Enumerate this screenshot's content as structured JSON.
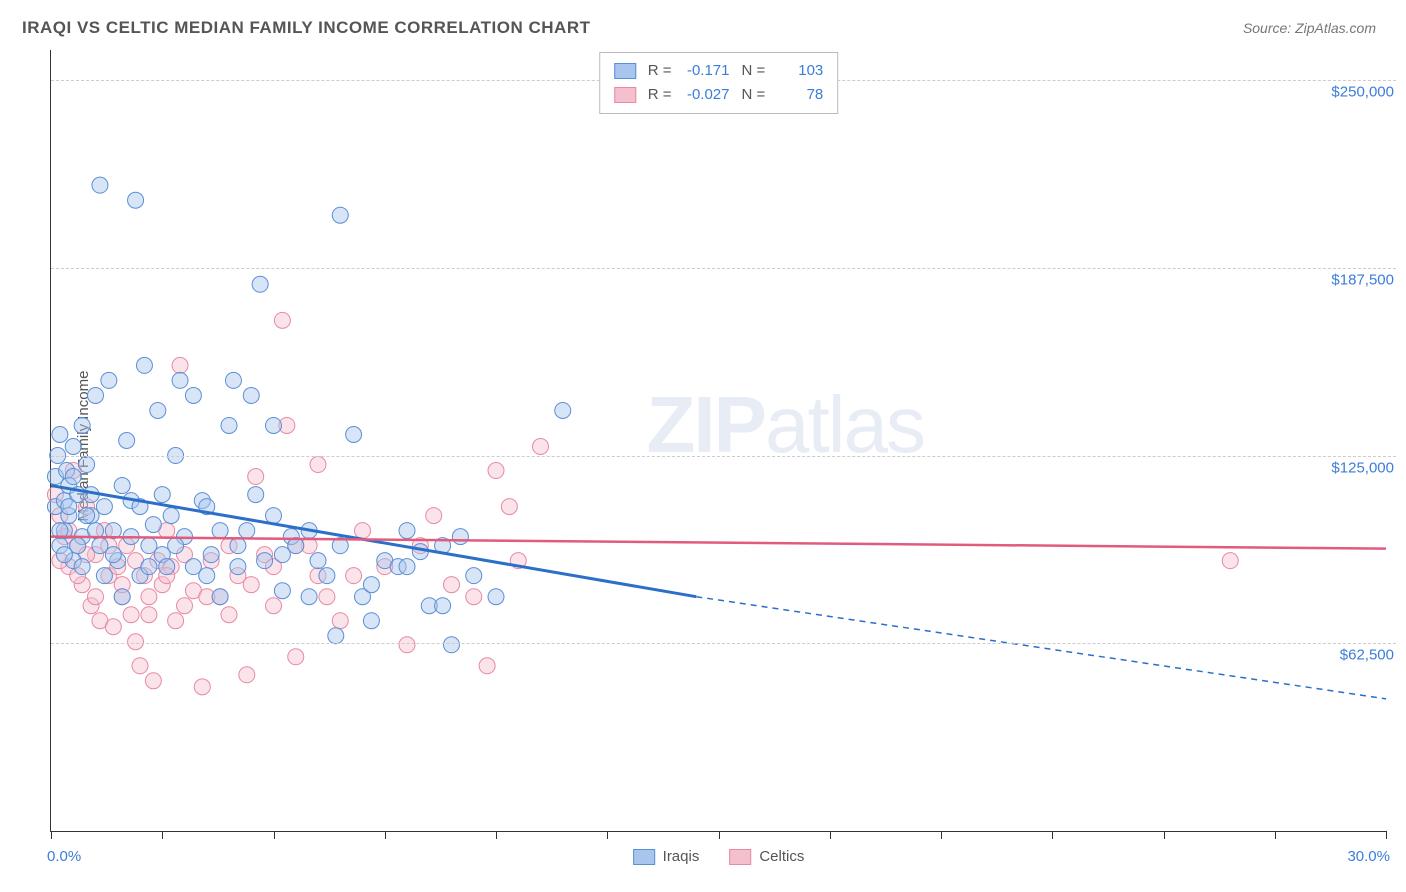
{
  "title": "IRAQI VS CELTIC MEDIAN FAMILY INCOME CORRELATION CHART",
  "source": "Source: ZipAtlas.com",
  "watermark": "ZIPatlas",
  "chart": {
    "type": "scatter",
    "y_label": "Median Family Income",
    "x_min": 0.0,
    "x_max": 30.0,
    "y_min": 0,
    "y_max": 260000,
    "y_ticks": [
      62500,
      125000,
      187500,
      250000
    ],
    "y_tick_labels": [
      "$62,500",
      "$125,000",
      "$187,500",
      "$250,000"
    ],
    "x_axis_start_label": "0.0%",
    "x_axis_end_label": "30.0%",
    "x_tick_positions": [
      0,
      2.5,
      5,
      7.5,
      10,
      12.5,
      15,
      17.5,
      20,
      22.5,
      25,
      27.5,
      30
    ],
    "background_color": "#ffffff",
    "grid_color": "#cccccc",
    "marker_radius": 8,
    "marker_opacity": 0.45,
    "series": [
      {
        "name": "Iraqis",
        "color_fill": "#a8c5ed",
        "color_stroke": "#5b8fd6",
        "line_color": "#2c6fc9",
        "R": "-0.171",
        "N": "103",
        "trend": {
          "x1": 0,
          "y1": 115000,
          "x2": 14.5,
          "y2": 78000,
          "x2_ext": 30,
          "y2_ext": 44000
        },
        "points": [
          [
            0.1,
            118000
          ],
          [
            0.1,
            108000
          ],
          [
            0.15,
            125000
          ],
          [
            0.2,
            95000
          ],
          [
            0.2,
            132000
          ],
          [
            0.3,
            110000
          ],
          [
            0.3,
            100000
          ],
          [
            0.35,
            120000
          ],
          [
            0.4,
            105000
          ],
          [
            0.4,
            115000
          ],
          [
            0.5,
            128000
          ],
          [
            0.5,
            90000
          ],
          [
            0.6,
            112000
          ],
          [
            0.7,
            98000
          ],
          [
            0.7,
            135000
          ],
          [
            0.8,
            122000
          ],
          [
            0.9,
            105000
          ],
          [
            1.0,
            145000
          ],
          [
            1.1,
            95000
          ],
          [
            1.1,
            215000
          ],
          [
            1.2,
            85000
          ],
          [
            1.3,
            150000
          ],
          [
            1.4,
            100000
          ],
          [
            1.5,
            90000
          ],
          [
            1.6,
            78000
          ],
          [
            1.7,
            130000
          ],
          [
            1.8,
            110000
          ],
          [
            1.9,
            210000
          ],
          [
            2.0,
            85000
          ],
          [
            2.1,
            155000
          ],
          [
            2.2,
            95000
          ],
          [
            2.3,
            102000
          ],
          [
            2.4,
            140000
          ],
          [
            2.5,
            92000
          ],
          [
            2.6,
            88000
          ],
          [
            2.7,
            105000
          ],
          [
            2.8,
            125000
          ],
          [
            2.9,
            150000
          ],
          [
            3.0,
            98000
          ],
          [
            3.2,
            145000
          ],
          [
            3.4,
            110000
          ],
          [
            3.5,
            85000
          ],
          [
            3.6,
            92000
          ],
          [
            3.8,
            78000
          ],
          [
            4.0,
            135000
          ],
          [
            4.1,
            150000
          ],
          [
            4.2,
            95000
          ],
          [
            4.4,
            100000
          ],
          [
            4.5,
            145000
          ],
          [
            4.7,
            182000
          ],
          [
            4.8,
            90000
          ],
          [
            5.0,
            105000
          ],
          [
            5.0,
            135000
          ],
          [
            5.2,
            80000
          ],
          [
            5.4,
            98000
          ],
          [
            5.5,
            95000
          ],
          [
            5.8,
            100000
          ],
          [
            6.0,
            90000
          ],
          [
            6.2,
            85000
          ],
          [
            6.4,
            65000
          ],
          [
            6.5,
            205000
          ],
          [
            6.8,
            132000
          ],
          [
            7.0,
            78000
          ],
          [
            7.2,
            70000
          ],
          [
            7.5,
            90000
          ],
          [
            7.8,
            88000
          ],
          [
            8.0,
            100000
          ],
          [
            8.3,
            93000
          ],
          [
            8.5,
            75000
          ],
          [
            8.8,
            95000
          ],
          [
            9.0,
            62000
          ],
          [
            9.5,
            85000
          ],
          [
            10.0,
            78000
          ],
          [
            11.5,
            140000
          ],
          [
            0.2,
            100000
          ],
          [
            0.3,
            92000
          ],
          [
            0.4,
            108000
          ],
          [
            0.5,
            118000
          ],
          [
            0.6,
            95000
          ],
          [
            0.7,
            88000
          ],
          [
            0.8,
            105000
          ],
          [
            0.9,
            112000
          ],
          [
            1.0,
            100000
          ],
          [
            1.2,
            108000
          ],
          [
            1.4,
            92000
          ],
          [
            1.6,
            115000
          ],
          [
            1.8,
            98000
          ],
          [
            2.0,
            108000
          ],
          [
            2.2,
            88000
          ],
          [
            2.5,
            112000
          ],
          [
            2.8,
            95000
          ],
          [
            3.2,
            88000
          ],
          [
            3.5,
            108000
          ],
          [
            3.8,
            100000
          ],
          [
            4.2,
            88000
          ],
          [
            4.6,
            112000
          ],
          [
            5.2,
            92000
          ],
          [
            5.8,
            78000
          ],
          [
            6.5,
            95000
          ],
          [
            7.2,
            82000
          ],
          [
            8.0,
            88000
          ],
          [
            8.8,
            75000
          ],
          [
            9.2,
            98000
          ]
        ]
      },
      {
        "name": "Celtics",
        "color_fill": "#f4c0ce",
        "color_stroke": "#e889a5",
        "line_color": "#e15b7e",
        "R": "-0.027",
        "N": "78",
        "trend": {
          "x1": 0,
          "y1": 98000,
          "x2": 30,
          "y2": 94000
        },
        "points": [
          [
            0.1,
            112000
          ],
          [
            0.2,
            105000
          ],
          [
            0.3,
            98000
          ],
          [
            0.4,
            88000
          ],
          [
            0.5,
            120000
          ],
          [
            0.6,
            95000
          ],
          [
            0.7,
            82000
          ],
          [
            0.8,
            108000
          ],
          [
            0.9,
            75000
          ],
          [
            1.0,
            92000
          ],
          [
            1.1,
            70000
          ],
          [
            1.2,
            100000
          ],
          [
            1.3,
            85000
          ],
          [
            1.4,
            68000
          ],
          [
            1.5,
            88000
          ],
          [
            1.6,
            78000
          ],
          [
            1.7,
            95000
          ],
          [
            1.8,
            72000
          ],
          [
            1.9,
            63000
          ],
          [
            2.0,
            55000
          ],
          [
            2.1,
            85000
          ],
          [
            2.2,
            78000
          ],
          [
            2.3,
            50000
          ],
          [
            2.4,
            90000
          ],
          [
            2.5,
            82000
          ],
          [
            2.6,
            100000
          ],
          [
            2.7,
            88000
          ],
          [
            2.8,
            70000
          ],
          [
            2.9,
            155000
          ],
          [
            3.0,
            75000
          ],
          [
            3.2,
            80000
          ],
          [
            3.4,
            48000
          ],
          [
            3.6,
            90000
          ],
          [
            3.8,
            78000
          ],
          [
            4.0,
            72000
          ],
          [
            4.2,
            85000
          ],
          [
            4.4,
            52000
          ],
          [
            4.6,
            118000
          ],
          [
            4.8,
            92000
          ],
          [
            5.0,
            75000
          ],
          [
            5.2,
            170000
          ],
          [
            5.3,
            135000
          ],
          [
            5.5,
            58000
          ],
          [
            5.8,
            95000
          ],
          [
            6.0,
            122000
          ],
          [
            6.2,
            78000
          ],
          [
            6.5,
            70000
          ],
          [
            6.8,
            85000
          ],
          [
            7.0,
            100000
          ],
          [
            7.5,
            88000
          ],
          [
            8.0,
            62000
          ],
          [
            8.3,
            95000
          ],
          [
            8.6,
            105000
          ],
          [
            9.0,
            82000
          ],
          [
            9.5,
            78000
          ],
          [
            9.8,
            55000
          ],
          [
            10.0,
            120000
          ],
          [
            10.3,
            108000
          ],
          [
            10.5,
            90000
          ],
          [
            11.0,
            128000
          ],
          [
            26.5,
            90000
          ],
          [
            0.2,
            90000
          ],
          [
            0.4,
            100000
          ],
          [
            0.6,
            85000
          ],
          [
            0.8,
            92000
          ],
          [
            1.0,
            78000
          ],
          [
            1.3,
            95000
          ],
          [
            1.6,
            82000
          ],
          [
            1.9,
            90000
          ],
          [
            2.2,
            72000
          ],
          [
            2.6,
            85000
          ],
          [
            3.0,
            92000
          ],
          [
            3.5,
            78000
          ],
          [
            4.0,
            95000
          ],
          [
            4.5,
            82000
          ],
          [
            5.0,
            88000
          ],
          [
            5.5,
            95000
          ],
          [
            6.0,
            85000
          ]
        ]
      }
    ]
  },
  "legend_bottom": [
    "Iraqis",
    "Celtics"
  ]
}
